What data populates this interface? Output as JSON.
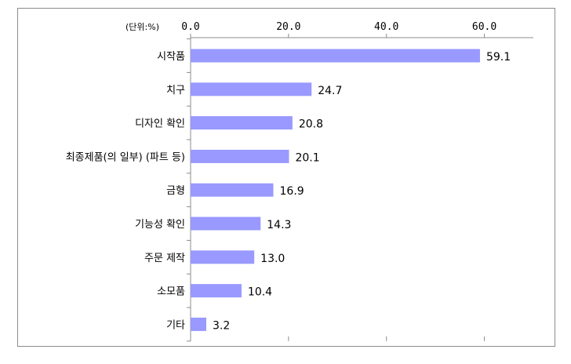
{
  "chart_data": {
    "type": "bar",
    "orientation": "horizontal",
    "unit_label": "(단위:%)",
    "categories": [
      "시작품",
      "치구",
      "디자인 확인",
      "최종제품(의 일부) (파트 등)",
      "금형",
      "기능성 확인",
      "주문 제작",
      "소모품",
      "기타"
    ],
    "values": [
      59.1,
      24.7,
      20.8,
      20.1,
      16.9,
      14.3,
      13.0,
      10.4,
      3.2
    ],
    "value_labels": [
      "59.1",
      "24.7",
      "20.8",
      "20.1",
      "16.9",
      "14.3",
      "13.0",
      "10.4",
      "3.2"
    ],
    "xlim": [
      0,
      70
    ],
    "x_ticks": [
      0,
      20,
      40,
      60
    ],
    "x_tick_labels": [
      "0.0",
      "20.0",
      "40.0",
      "60.0"
    ],
    "axis_position": "top",
    "grid": false,
    "bar_color": "#9999ff"
  }
}
